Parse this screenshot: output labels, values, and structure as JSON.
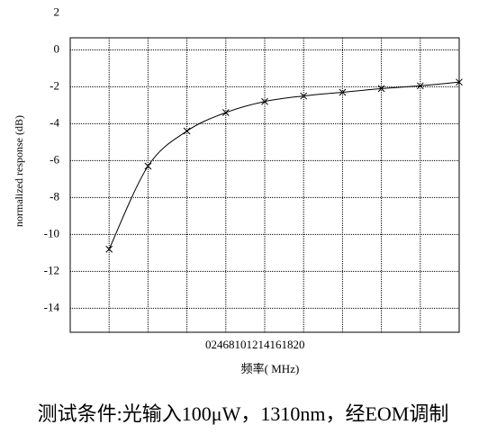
{
  "chart_data": {
    "type": "line",
    "x": [
      2,
      4,
      6,
      8,
      10,
      12,
      14,
      16,
      18,
      20
    ],
    "series": [
      {
        "name": "normalized response",
        "color": "#000000",
        "marker": "x",
        "values": [
          -10.8,
          -6.3,
          -4.4,
          -3.4,
          -2.8,
          -2.5,
          -2.3,
          -2.1,
          -1.95,
          -1.75
        ]
      }
    ],
    "xlim": [
      0,
      20
    ],
    "xticks": [
      0,
      2,
      4,
      6,
      8,
      10,
      12,
      14,
      16,
      18,
      20
    ],
    "ylim": [
      -15.3,
      0.65
    ],
    "yticks": [
      2,
      0,
      -2,
      -4,
      -6,
      -8,
      -10,
      -12,
      -14
    ],
    "xlabel": "频率( MHz)",
    "ylabel": "normalized response (dB)",
    "grid": true
  },
  "caption": "测试条件:光输入100μW，1310nm，经EOM调制"
}
